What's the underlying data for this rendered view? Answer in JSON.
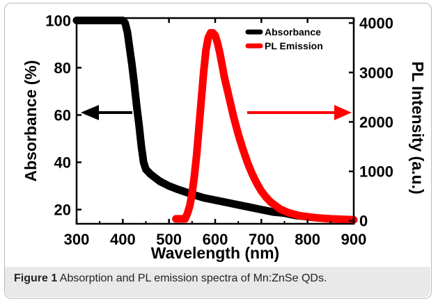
{
  "figure": {
    "label": "Figure 1",
    "caption": "Absorption and PL emission spectra of Mn:ZnSe QDs."
  },
  "chart_data": {
    "type": "line",
    "xlabel": "Wavelength (nm)",
    "ylabel_left": "Absorbance (%)",
    "ylabel_right": "PL Intensity (a.u.)",
    "xlim": [
      300,
      900
    ],
    "ylim_left": [
      14,
      101
    ],
    "ylim_right": [
      -60,
      4100
    ],
    "x_ticks": [
      "300",
      "400",
      "500",
      "600",
      "700",
      "800",
      "900"
    ],
    "y_left_ticks": [
      "20",
      "40",
      "60",
      "80",
      "100"
    ],
    "y_right_ticks": [
      "0",
      "1000",
      "2000",
      "3000",
      "4000"
    ],
    "legend_position": "top-right",
    "series": [
      {
        "name": "Absorbance",
        "axis": "left",
        "color": "#000000",
        "x": [
          300,
          400,
          405,
          410,
          415,
          420,
          425,
          430,
          435,
          440,
          445,
          450,
          460,
          470,
          480,
          500,
          520,
          550,
          575,
          600,
          625,
          650,
          675,
          700,
          725,
          750,
          775,
          800
        ],
        "y": [
          100,
          100,
          99,
          95,
          88,
          81,
          73,
          64,
          56,
          47,
          40,
          37,
          35,
          33.5,
          32,
          30,
          28.5,
          26.5,
          25,
          24,
          23,
          22,
          21,
          20,
          19,
          18.5,
          17.5,
          17
        ]
      },
      {
        "name": "PL Emission",
        "axis": "right",
        "color": "#ff0000",
        "x": [
          515,
          535,
          540,
          545,
          550,
          555,
          560,
          565,
          570,
          575,
          580,
          585,
          590,
          595,
          600,
          605,
          610,
          615,
          620,
          630,
          640,
          650,
          660,
          670,
          680,
          690,
          700,
          710,
          720,
          740,
          760,
          780,
          800,
          820,
          850,
          900
        ],
        "y": [
          40,
          40,
          150,
          300,
          550,
          900,
          1350,
          1900,
          2450,
          3000,
          3450,
          3700,
          3800,
          3800,
          3750,
          3600,
          3400,
          3150,
          2900,
          2500,
          2100,
          1750,
          1450,
          1180,
          950,
          760,
          600,
          480,
          380,
          240,
          160,
          110,
          80,
          60,
          40,
          20
        ]
      }
    ],
    "annotations": [
      {
        "type": "arrow",
        "direction": "left",
        "points_to": "left-axis"
      },
      {
        "type": "arrow",
        "direction": "right",
        "points_to": "right-axis"
      }
    ]
  }
}
